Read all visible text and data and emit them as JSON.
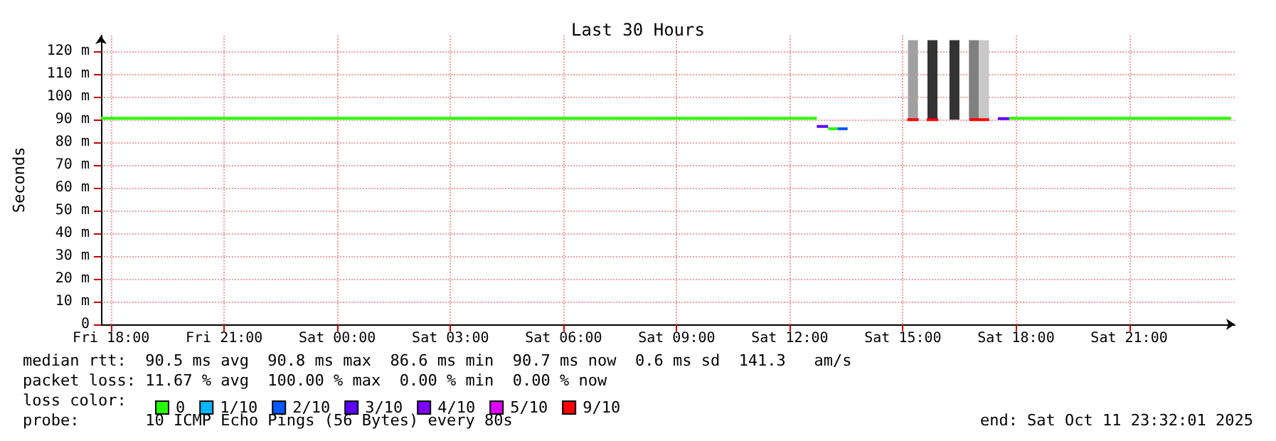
{
  "chart_data": {
    "type": "line",
    "title": "Last 30 Hours",
    "ylabel": "Seconds",
    "legend_title": "loss color:",
    "xlim": [
      "2025-10-10T17:44",
      "2025-10-11T23:48"
    ],
    "ylim": [
      0,
      127
    ],
    "xticks": [
      {
        "value": "2025-10-10T18:00",
        "label": "Fri 18:00"
      },
      {
        "value": "2025-10-10T21:00",
        "label": "Fri 21:00"
      },
      {
        "value": "2025-10-11T00:00",
        "label": "Sat 00:00"
      },
      {
        "value": "2025-10-11T03:00",
        "label": "Sat 03:00"
      },
      {
        "value": "2025-10-11T06:00",
        "label": "Sat 06:00"
      },
      {
        "value": "2025-10-11T09:00",
        "label": "Sat 09:00"
      },
      {
        "value": "2025-10-11T12:00",
        "label": "Sat 12:00"
      },
      {
        "value": "2025-10-11T15:00",
        "label": "Sat 15:00"
      },
      {
        "value": "2025-10-11T18:00",
        "label": "Sat 18:00"
      },
      {
        "value": "2025-10-11T21:00",
        "label": "Sat 21:00"
      }
    ],
    "yticks": [
      0,
      {
        "value": 10,
        "label": "10 m"
      },
      {
        "value": 20,
        "label": "20 m"
      },
      {
        "value": 30,
        "label": "30 m"
      },
      {
        "value": 40,
        "label": "40 m"
      },
      {
        "value": 50,
        "label": "50 m"
      },
      {
        "value": 60,
        "label": "60 m"
      },
      {
        "value": 70,
        "label": "70 m"
      },
      {
        "value": 80,
        "label": "80 m"
      },
      {
        "value": 90,
        "label": "90 m"
      },
      {
        "value": 100,
        "label": "100 m"
      },
      {
        "value": 110,
        "label": "110 m"
      },
      {
        "value": 120,
        "label": "120 m"
      }
    ],
    "grid": true,
    "legend": "bottom",
    "marker": "none",
    "line_style": "solid",
    "series": [
      {
        "type": "bar",
        "x": [
          "2025-10-11T15:16",
          "2025-10-11T15:47",
          "2025-10-11T16:22",
          "2025-10-11T16:53",
          "2025-10-11T17:09"
        ],
        "base": [
          90,
          90,
          90,
          90,
          90
        ],
        "values": [
          35,
          35,
          35,
          35,
          35
        ],
        "colors": [
          "#a0a0a0",
          "#333333",
          "#333333",
          "#7f7f7f",
          "#c8c8c8"
        ]
      },
      {
        "name": "0",
        "color": "#26ff00",
        "x": [
          "2025-10-10T17:44",
          "2025-10-11T12:43",
          "2025-10-11T12:48",
          "2025-10-11T13:01",
          "2025-10-11T13:16",
          "2025-10-11T13:18",
          "2025-10-11T17:49",
          "2025-10-11T23:42"
        ],
        "values": [
          90.6,
          90.6,
          null,
          86,
          86,
          null,
          90.6,
          90.6
        ]
      },
      {
        "name": "1/10",
        "color": "#00b8ff"
      },
      {
        "name": "2/10",
        "color": "#0059ff",
        "x": [
          "2025-10-11T13:16",
          "2025-10-11T13:32"
        ],
        "values": [
          86,
          86
        ]
      },
      {
        "name": "3/10",
        "color": "#5e00ff",
        "x": [
          "2025-10-11T12:43",
          "2025-10-11T13:01",
          "2025-10-11T13:06",
          "2025-10-11T17:31",
          "2025-10-11T17:49"
        ],
        "values": [
          87,
          87,
          null,
          90.5,
          90.5
        ]
      },
      {
        "name": "4/10",
        "color": "#7e00ff"
      },
      {
        "name": "5/10",
        "color": "#dd00ff"
      },
      {
        "name": "9/10",
        "color": "#ff0000",
        "x": [
          "2025-10-11T15:07",
          "2025-10-11T15:25",
          "2025-10-11T15:30",
          "2025-10-11T15:38",
          "2025-10-11T15:56",
          "2025-10-11T16:06",
          "2025-10-11T16:46",
          "2025-10-11T17:17"
        ],
        "values": [
          90,
          90,
          null,
          90,
          90,
          null,
          90,
          90
        ]
      }
    ],
    "annotations": [
      "median rtt:  90.5 ms avg  90.8 ms max  86.6 ms min  90.7 ms now  0.6 ms sd  141.3   am/s",
      "packet loss: 11.67 % avg  100.00 % max  0.00 % min  0.00 % now",
      "probe:       10 ICMP Echo Pings (56 Bytes) every 80s",
      "end: Sat Oct 11 23:32:01 2025"
    ]
  }
}
